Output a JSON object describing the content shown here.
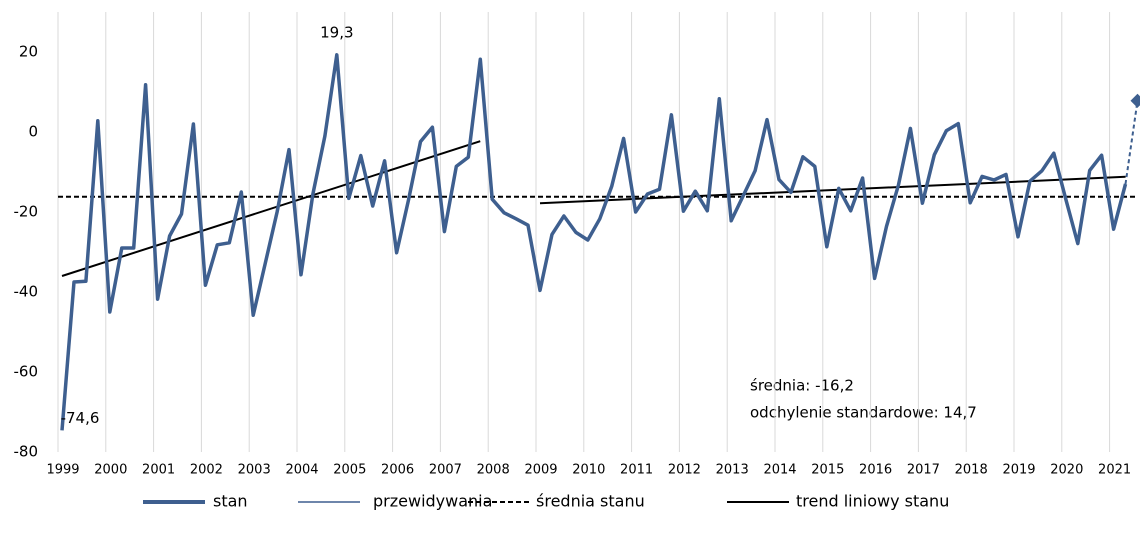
{
  "chart_data": {
    "type": "line",
    "categories": [
      "1999",
      null,
      null,
      null,
      "2000",
      null,
      null,
      null,
      "2001",
      null,
      null,
      null,
      "2002",
      null,
      null,
      null,
      "2003",
      null,
      null,
      null,
      "2004",
      null,
      null,
      null,
      "2005",
      null,
      null,
      null,
      "2006",
      null,
      null,
      null,
      "2007",
      null,
      null,
      null,
      "2008",
      null,
      null,
      null,
      "2009",
      null,
      null,
      null,
      "2010",
      null,
      null,
      null,
      "2011",
      null,
      null,
      null,
      "2012",
      null,
      null,
      null,
      "2013",
      null,
      null,
      null,
      "2014",
      null,
      null,
      null,
      "2015",
      null,
      null,
      null,
      "2016",
      null,
      null,
      null,
      "2017",
      null,
      null,
      null,
      "2018",
      null,
      null,
      null,
      "2019",
      null,
      null,
      null,
      "2020",
      null,
      null,
      null,
      "2021",
      null,
      null
    ],
    "series": [
      {
        "name": "stan",
        "color": "#3e5f8f",
        "values": [
          -74.6,
          -37.5,
          -37.3,
          2.8,
          -45,
          -29,
          -29,
          11.8,
          -41.8,
          -26,
          -20.5,
          2,
          -38.3,
          -28.2,
          -27.7,
          -15,
          -45.8,
          -33,
          -20,
          -4.4,
          -35.7,
          -15.5,
          -1,
          19.3,
          -16.6,
          -5.9,
          -18.5,
          -7.2,
          -30.2,
          -17,
          -2.4,
          1.2,
          -24.9,
          -8.6,
          -6.3,
          18.2,
          -16.8,
          -20.2,
          -21.7,
          -23.3,
          -39.6,
          -25.6,
          -21,
          -25.1,
          -27,
          -21.7,
          -13.6,
          -1.6,
          -20,
          -15.5,
          -14.3,
          4.3,
          -19.8,
          -14.8,
          -19.7,
          8.3,
          -22.2,
          -16,
          -9.7,
          3.1,
          -11.9,
          -15.1,
          -6.2,
          -8.6,
          -28.7,
          -14.1,
          -19.7,
          -11.5,
          -36.6,
          -23.6,
          -13.2,
          0.9,
          -17.8,
          -5.7,
          0.3,
          2.1,
          -17.7,
          -11.1,
          -12,
          -10.6,
          -26.2,
          -12.3,
          -9.7,
          -5.3,
          -16.8,
          -27.9,
          -9.6,
          -5.8,
          -24.3,
          -13,
          null
        ],
        "value_labels": [
          "-74,6",
          null,
          null,
          null,
          null,
          null,
          null,
          null,
          null,
          null,
          null,
          null,
          null,
          null,
          null,
          null,
          null,
          null,
          null,
          null,
          null,
          null,
          null,
          "19,3",
          null,
          null,
          null,
          null,
          null,
          null,
          null,
          null,
          null,
          null,
          null,
          null,
          null,
          null,
          null,
          null,
          null,
          null,
          null,
          null,
          null,
          null,
          null,
          null,
          null,
          null,
          null,
          null,
          null,
          null,
          null,
          null,
          null,
          null,
          null,
          null,
          null,
          null,
          null,
          null,
          null,
          null,
          null,
          null,
          null,
          null,
          null,
          null,
          null,
          null,
          null,
          null,
          null,
          null,
          null,
          null,
          null,
          null,
          null,
          null,
          null,
          null,
          null,
          null,
          null,
          null,
          null
        ]
      },
      {
        "name": "przewidywania",
        "color": "#3e5f8f",
        "values": [
          null,
          null,
          null,
          null,
          null,
          null,
          null,
          null,
          null,
          null,
          null,
          null,
          null,
          null,
          null,
          null,
          null,
          null,
          null,
          null,
          null,
          null,
          null,
          null,
          null,
          null,
          null,
          null,
          null,
          null,
          null,
          null,
          null,
          null,
          null,
          null,
          null,
          null,
          null,
          null,
          null,
          null,
          null,
          null,
          null,
          null,
          null,
          null,
          null,
          null,
          null,
          null,
          null,
          null,
          null,
          null,
          null,
          null,
          null,
          null,
          null,
          null,
          null,
          null,
          null,
          null,
          null,
          null,
          null,
          null,
          null,
          null,
          null,
          null,
          null,
          null,
          null,
          null,
          null,
          null,
          null,
          null,
          null,
          null,
          null,
          null,
          null,
          null,
          null,
          -13,
          7.8
        ]
      }
    ],
    "mean_line": {
      "name": "średnia stanu",
      "color": "#000000",
      "value": -16.2
    },
    "trend": {
      "name": "trend liniowy stanu",
      "color": "#000000",
      "segments": [
        {
          "x": [
            0,
            35
          ],
          "values": [
            -36,
            -2.3
          ]
        },
        {
          "x": [
            40,
            89
          ],
          "values": [
            -17.8,
            -11.2
          ]
        }
      ]
    },
    "annotations": [
      "średnia: -16,2",
      "odchylenie standardowe: 14,7"
    ],
    "ylim": [
      -80,
      30
    ],
    "yticks": [
      20,
      0,
      -20,
      -40,
      -60,
      -80
    ],
    "grid": "vertical"
  }
}
